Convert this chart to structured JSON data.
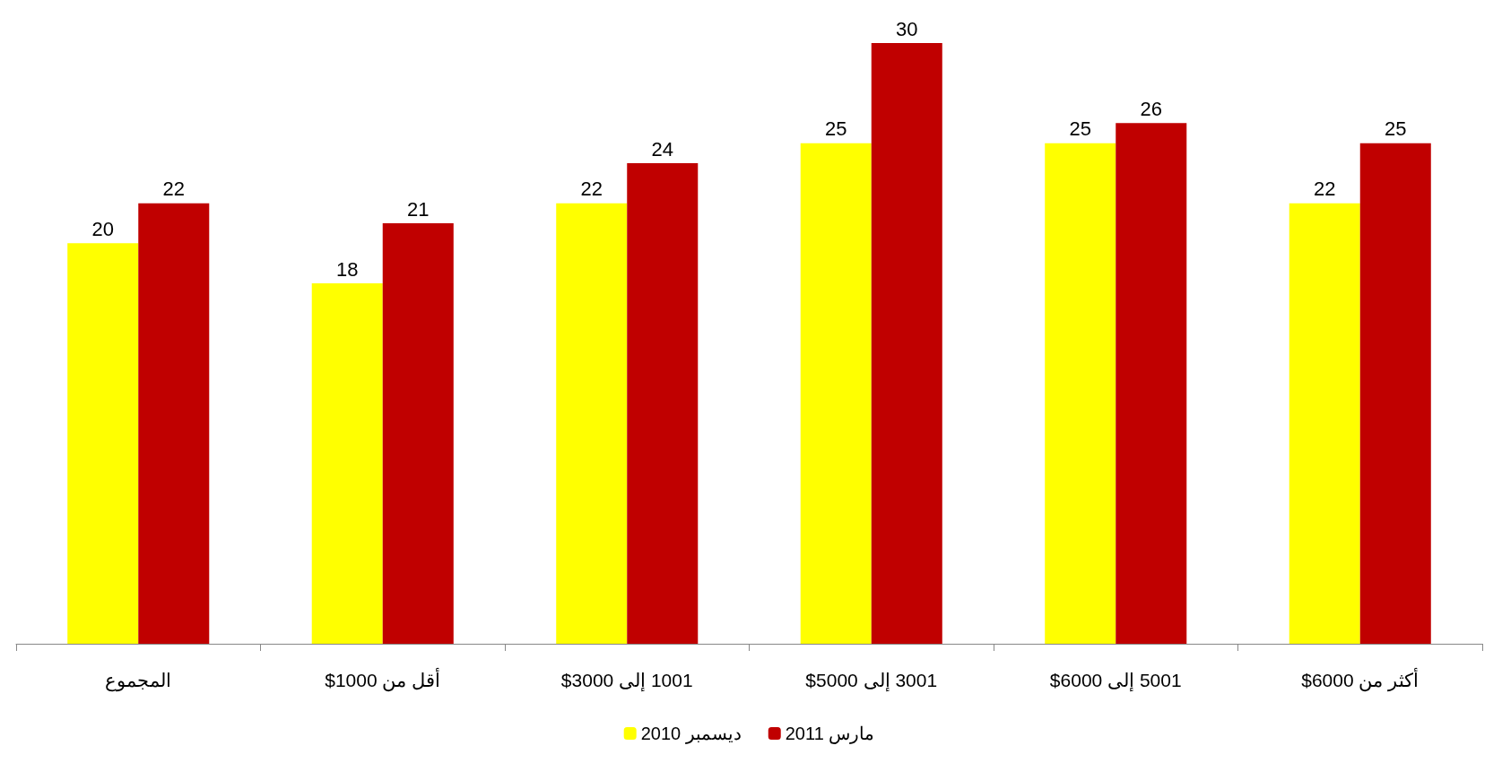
{
  "chart_data": {
    "type": "bar",
    "categories": [
      "المجموع",
      "أقل من 1000$",
      "1001 إلى 3000$",
      "3001 إلى 5000$",
      "5001 إلى 6000$",
      "أكثر من 6000$"
    ],
    "series": [
      {
        "name": "ديسمبر 2010",
        "color": "#ffff00",
        "values": [
          20,
          18,
          22,
          25,
          25,
          22
        ]
      },
      {
        "name": "مارس 2011",
        "color": "#c00000",
        "values": [
          22,
          21,
          24,
          30,
          26,
          25
        ]
      }
    ],
    "data_labels": true,
    "legend": "bottom"
  }
}
